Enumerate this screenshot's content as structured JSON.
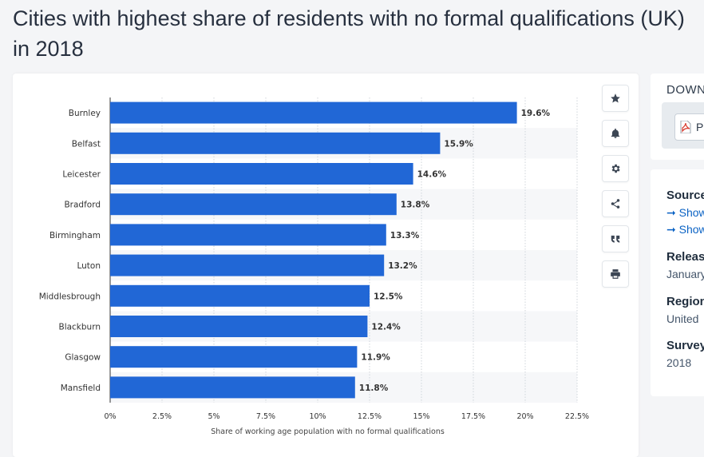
{
  "page": {
    "title": "Cities with highest share of residents with no formal qualifications (UK) in 2018"
  },
  "toolbar": {
    "icons": [
      "star-icon",
      "bell-icon",
      "gear-icon",
      "share-icon",
      "quote-icon",
      "print-icon"
    ]
  },
  "sidebar": {
    "download_title": "DOWN",
    "pdf_label": "P",
    "source_heading": "Source",
    "show_link_1": "➞ Show",
    "show_link_2": "➞ Show",
    "release_heading": "Releas",
    "release_value": "January",
    "region_heading": "Region",
    "region_value": "United",
    "survey_heading": "Survey",
    "survey_value": "2018"
  },
  "colors": {
    "bar": "#2167d6",
    "accent_link": "#0a62c4",
    "pdf_red": "#d83a2e"
  },
  "chart_data": {
    "type": "bar",
    "orientation": "horizontal",
    "categories": [
      "Burnley",
      "Belfast",
      "Leicester",
      "Bradford",
      "Birmingham",
      "Luton",
      "Middlesbrough",
      "Blackburn",
      "Glasgow",
      "Mansfield"
    ],
    "values": [
      19.6,
      15.9,
      14.6,
      13.8,
      13.3,
      13.2,
      12.5,
      12.4,
      11.9,
      11.8
    ],
    "value_labels": [
      "19.6%",
      "15.9%",
      "14.6%",
      "13.8%",
      "13.3%",
      "13.2%",
      "12.5%",
      "12.4%",
      "11.9%",
      "11.8%"
    ],
    "xlim": [
      0,
      22.5
    ],
    "xticks": [
      0,
      2.5,
      5,
      7.5,
      10,
      12.5,
      15,
      17.5,
      20,
      22.5
    ],
    "xtick_labels": [
      "0%",
      "2.5%",
      "5%",
      "7.5%",
      "10%",
      "12.5%",
      "15%",
      "17.5%",
      "20%",
      "22.5%"
    ],
    "xlabel": "Share of working age population with no formal qualifications",
    "ylabel": "",
    "grid": true,
    "alternating_row_shading": true
  }
}
